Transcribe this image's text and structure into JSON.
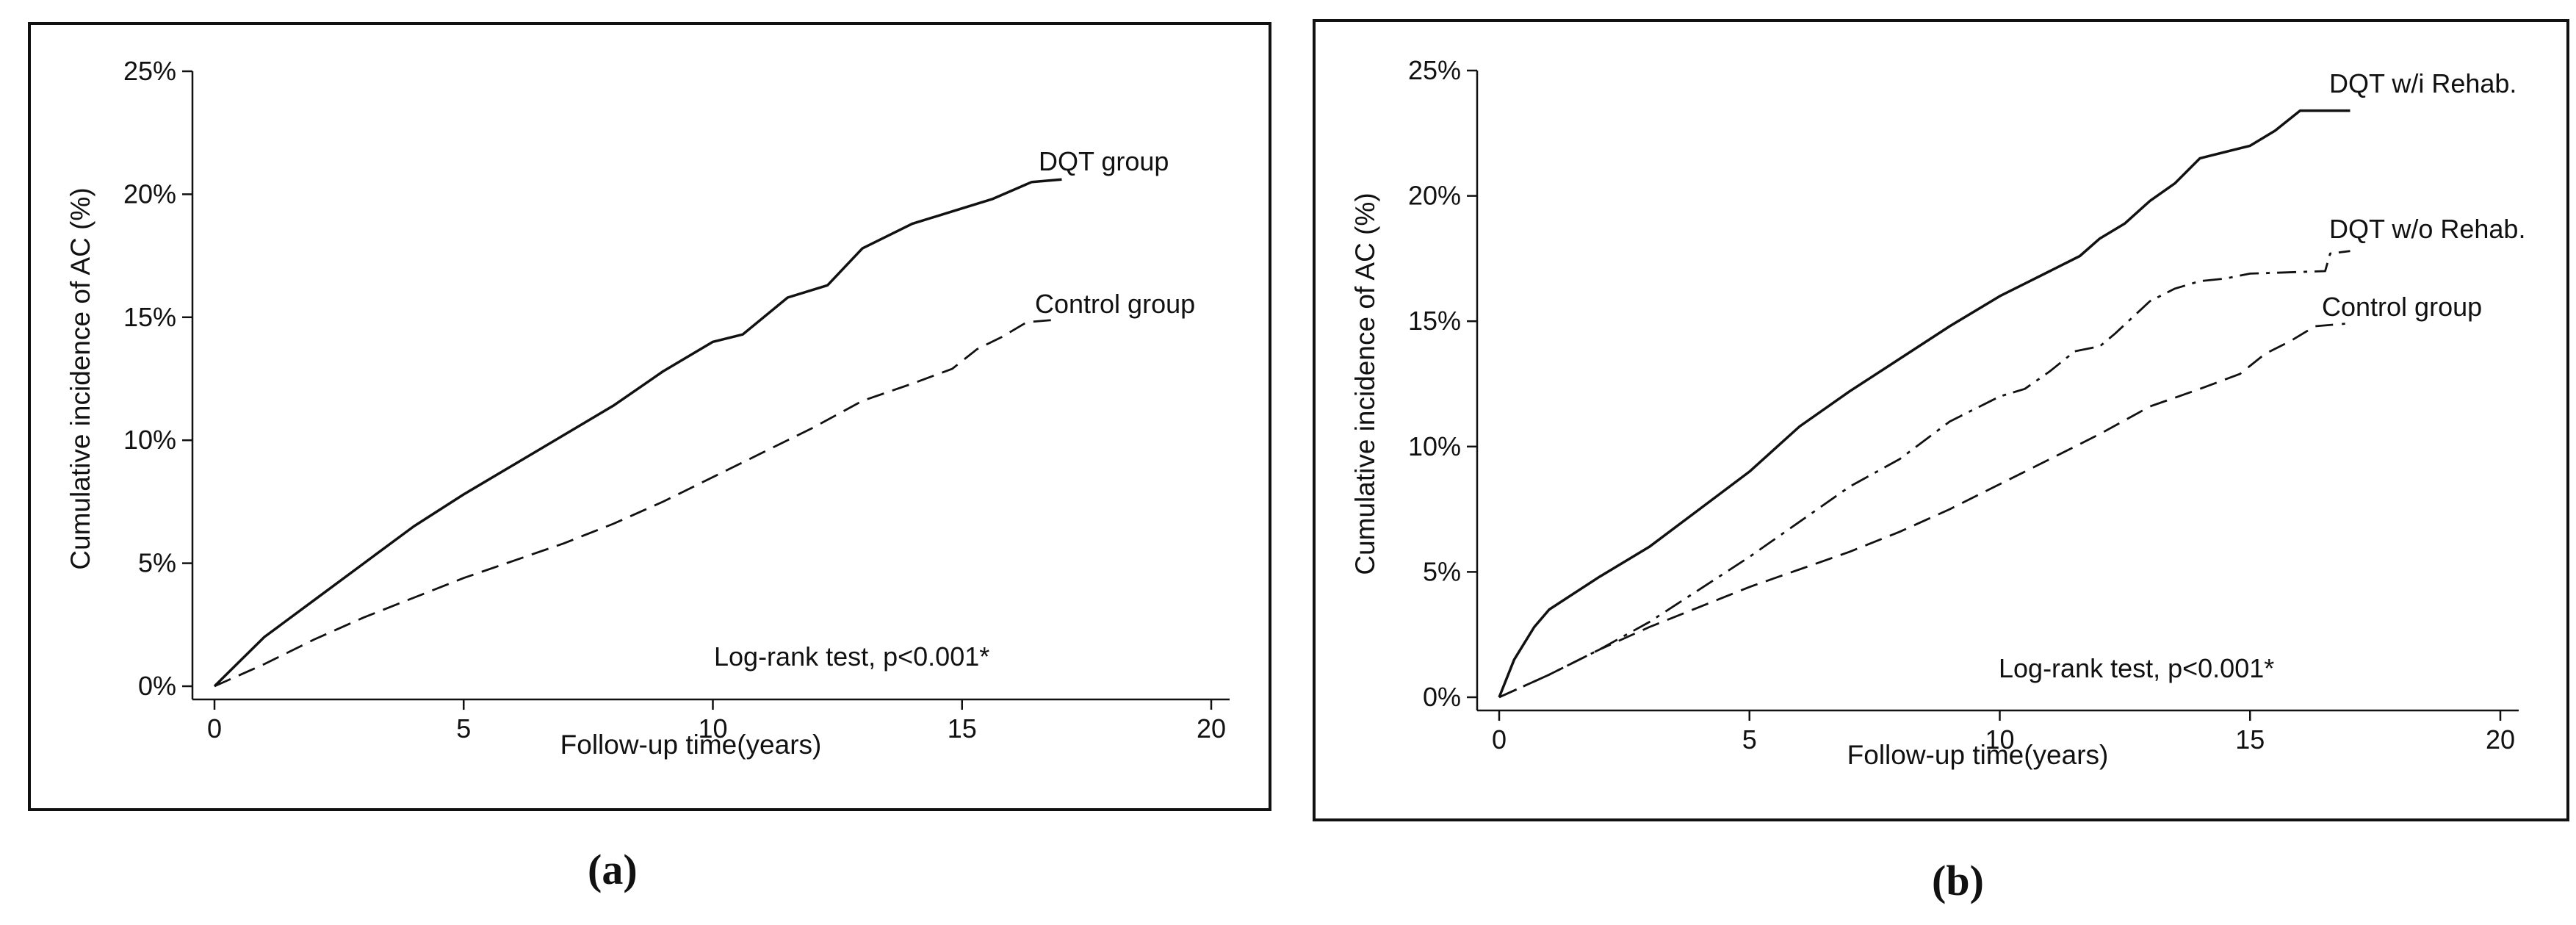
{
  "captions": [
    "(a)",
    "(b)"
  ],
  "colors": {
    "line": "#111111",
    "background": "#ffffff"
  },
  "chart_data": [
    {
      "type": "line",
      "title": "",
      "xlabel": "Follow-up time(years)",
      "ylabel": "Cumulative incidence of AC (%)",
      "xlim": [
        0,
        20
      ],
      "ylim": [
        0,
        25
      ],
      "xticks": [
        0,
        5,
        10,
        15,
        20
      ],
      "xtick_labels": [
        "0",
        "5",
        "10",
        "15",
        "20"
      ],
      "yticks": [
        0,
        5,
        10,
        15,
        20,
        25
      ],
      "ytick_labels": [
        "0%",
        "5%",
        "10%",
        "15%",
        "20%",
        "25%"
      ],
      "grid": false,
      "annotation": "Log-rank test, p<0.001*",
      "series": [
        {
          "name": "DQT group",
          "style": "solid",
          "x": [
            0,
            0.5,
            1,
            2,
            3,
            4,
            5,
            6,
            7,
            8,
            9,
            10,
            10.6,
            11.5,
            12.3,
            13,
            14,
            14.8,
            15.6,
            16.4,
            17
          ],
          "y": [
            0,
            1.0,
            2.0,
            3.5,
            5.0,
            6.5,
            7.8,
            9.0,
            10.2,
            11.4,
            12.8,
            14.0,
            14.3,
            15.8,
            16.3,
            17.8,
            18.8,
            19.3,
            19.8,
            20.5,
            20.6
          ]
        },
        {
          "name": "Control group",
          "style": "dashed",
          "x": [
            0,
            1,
            2,
            3,
            4,
            5,
            6,
            7,
            8,
            9,
            10,
            11,
            12,
            13,
            14,
            14.8,
            15.3,
            15.8,
            16.3,
            16.9
          ],
          "y": [
            0,
            0.9,
            1.9,
            2.8,
            3.6,
            4.4,
            5.1,
            5.8,
            6.6,
            7.5,
            8.5,
            9.5,
            10.5,
            11.6,
            12.3,
            12.9,
            13.7,
            14.2,
            14.8,
            14.9
          ]
        }
      ]
    },
    {
      "type": "line",
      "title": "",
      "xlabel": "Follow-up time(years)",
      "ylabel": "Cumulative incidence of AC (%)",
      "xlim": [
        0,
        20
      ],
      "ylim": [
        0,
        25
      ],
      "xticks": [
        0,
        5,
        10,
        15,
        20
      ],
      "xtick_labels": [
        "0",
        "5",
        "10",
        "15",
        "20"
      ],
      "yticks": [
        0,
        5,
        10,
        15,
        20,
        25
      ],
      "ytick_labels": [
        "0%",
        "5%",
        "10%",
        "15%",
        "20%",
        "25%"
      ],
      "grid": false,
      "annotation": "Log-rank test, p<0.001*",
      "series": [
        {
          "name": "DQT w/i Rehab.",
          "style": "solid",
          "x": [
            0,
            0.3,
            0.7,
            1,
            2,
            3,
            4,
            5,
            6,
            7,
            8,
            9,
            10,
            11,
            11.6,
            12,
            12.5,
            13,
            13.5,
            14,
            15,
            15.5,
            16,
            17
          ],
          "y": [
            0,
            1.5,
            2.8,
            3.5,
            4.8,
            6.0,
            7.5,
            9.0,
            10.8,
            12.2,
            13.5,
            14.8,
            16.0,
            17.0,
            17.6,
            18.3,
            18.9,
            19.8,
            20.5,
            21.5,
            22.0,
            22.6,
            23.4,
            23.4
          ]
        },
        {
          "name": "DQT w/o Rehab.",
          "style": "dashdot",
          "x": [
            0,
            1,
            2,
            3,
            4,
            5,
            6,
            7,
            8,
            9,
            10,
            10.5,
            11,
            11.5,
            12,
            12.3,
            13,
            13.5,
            14,
            14.5,
            15,
            16.5,
            16.6,
            17
          ],
          "y": [
            0,
            0.9,
            1.9,
            3.0,
            4.3,
            5.6,
            7.0,
            8.4,
            9.5,
            11.0,
            12.0,
            12.3,
            13.0,
            13.8,
            14.0,
            14.5,
            15.8,
            16.3,
            16.6,
            16.7,
            16.9,
            17.0,
            17.7,
            17.8
          ]
        },
        {
          "name": "Control group",
          "style": "dashed",
          "x": [
            0,
            1,
            2,
            3,
            4,
            5,
            6,
            7,
            8,
            9,
            10,
            11,
            12,
            13,
            14,
            14.8,
            15.3,
            15.8,
            16.3,
            16.9
          ],
          "y": [
            0,
            0.9,
            1.9,
            2.8,
            3.6,
            4.4,
            5.1,
            5.8,
            6.6,
            7.5,
            8.5,
            9.5,
            10.5,
            11.6,
            12.3,
            12.9,
            13.7,
            14.2,
            14.8,
            14.9
          ]
        }
      ]
    }
  ]
}
